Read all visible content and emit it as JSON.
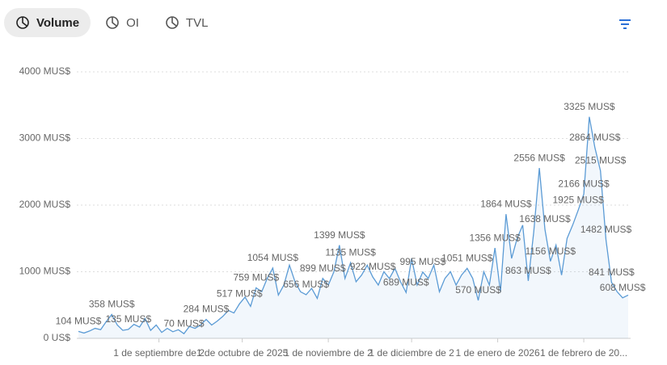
{
  "tabs": [
    "Volume",
    "OI",
    "TVL"
  ],
  "chart_data": {
    "type": "line",
    "color": "#5b9bd5",
    "grid": true,
    "ylim": [
      0,
      4000
    ],
    "yticks": [
      {
        "value": 0,
        "label": "0 US$"
      },
      {
        "value": 1000,
        "label": "1000 MUS$"
      },
      {
        "value": 2000,
        "label": "2000 MUS$"
      },
      {
        "value": 3000,
        "label": "3000 MUS$"
      },
      {
        "value": 4000,
        "label": "4000 MUS$"
      }
    ],
    "xticks": [
      {
        "value": 14.5,
        "label": "1 de septiembre de 2"
      },
      {
        "value": 29.5,
        "label": "1 de octubre de 2025"
      },
      {
        "value": 45,
        "label": "1 de noviembre de 2"
      },
      {
        "value": 60,
        "label": "1 de diciembre de 2"
      },
      {
        "value": 75.5,
        "label": "1 de enero de 2026"
      },
      {
        "value": 91,
        "label": "1 de febrero de 20..."
      }
    ],
    "values": [
      104,
      80,
      110,
      150,
      130,
      250,
      358,
      200,
      120,
      135,
      210,
      170,
      300,
      120,
      200,
      90,
      150,
      100,
      130,
      70,
      180,
      150,
      200,
      284,
      200,
      260,
      330,
      420,
      380,
      517,
      620,
      480,
      759,
      700,
      900,
      1054,
      650,
      800,
      1100,
      850,
      700,
      656,
      750,
      600,
      899,
      800,
      1000,
      1399,
      900,
      1135,
      850,
      950,
      1100,
      922,
      800,
      1000,
      900,
      1050,
      850,
      689,
      1200,
      800,
      995,
      900,
      1100,
      700,
      900,
      1000,
      800,
      950,
      1051,
      900,
      570,
      1000,
      800,
      1356,
      700,
      1864,
      1200,
      1500,
      1700,
      863,
      1600,
      2556,
      1638,
      1156,
      1400,
      950,
      1500,
      1700,
      1925,
      2166,
      3325,
      2864,
      2515,
      1482,
      841,
      700,
      608,
      650
    ],
    "value_labels": [
      "104 MUS$",
      null,
      null,
      null,
      null,
      null,
      "358 MUS$",
      null,
      null,
      "135 MUS$",
      null,
      null,
      null,
      null,
      null,
      null,
      null,
      null,
      null,
      "70 MUS$",
      null,
      null,
      null,
      "284 MUS$",
      null,
      null,
      null,
      null,
      null,
      "517 MUS$",
      null,
      null,
      "759 MUS$",
      null,
      null,
      "1054 MUS$",
      null,
      null,
      null,
      null,
      null,
      "656 MUS$",
      null,
      null,
      "899 MUS$",
      null,
      null,
      "1399 MUS$",
      null,
      "1135 MUS$",
      null,
      null,
      null,
      "922 MUS$",
      null,
      null,
      null,
      null,
      null,
      "689 MUS$",
      null,
      null,
      "995 MUS$",
      null,
      null,
      null,
      null,
      null,
      null,
      null,
      "1051 MUS$",
      null,
      "570 MUS$",
      null,
      null,
      "1356 MUS$",
      null,
      "1864 MUS$",
      null,
      null,
      null,
      "863 MUS$",
      null,
      "2556 MUS$",
      "1638 MUS$",
      "1156 MUS$",
      null,
      null,
      null,
      null,
      "1925 MUS$",
      "2166 MUS$",
      "3325 MUS$",
      "2864 MUS$",
      "2515 MUS$",
      "1482 MUS$",
      "841 MUS$",
      null,
      "608 MUS$",
      null
    ]
  }
}
